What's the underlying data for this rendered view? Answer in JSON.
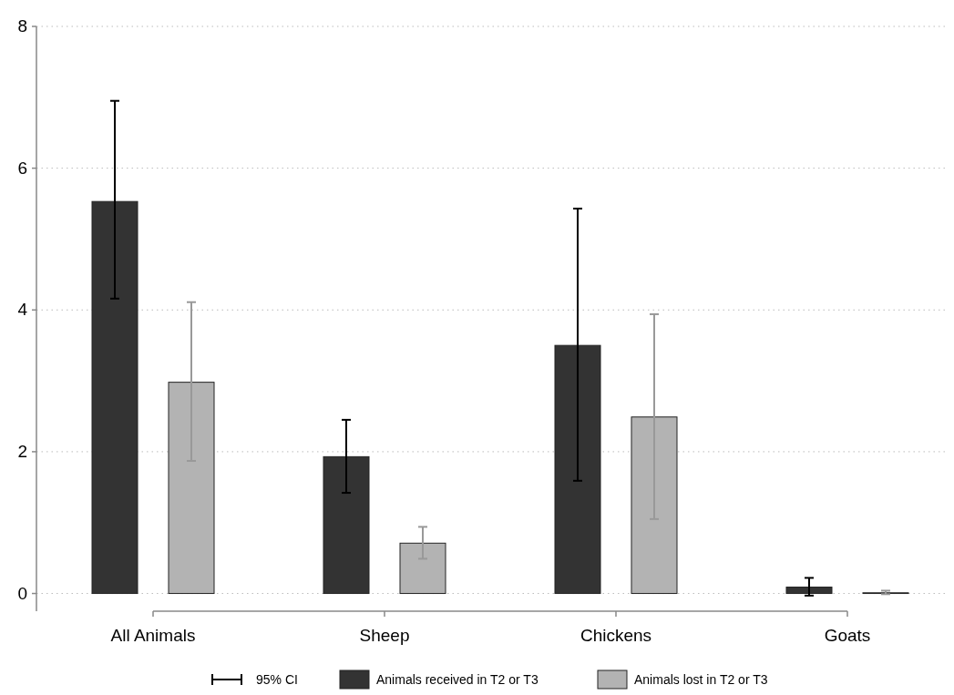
{
  "chart_data": {
    "type": "bar",
    "categories": [
      "All Animals",
      "Sheep",
      "Chickens",
      "Goats"
    ],
    "series": [
      {
        "name": "Animals received in T2 or T3",
        "color": "#333333",
        "values": [
          5.53,
          1.93,
          3.5,
          0.09
        ],
        "errors": [
          [
            4.16,
            6.95
          ],
          [
            1.42,
            2.45
          ],
          [
            1.59,
            5.43
          ],
          [
            -0.03,
            0.22
          ]
        ]
      },
      {
        "name": "Animals lost in T2 or T3",
        "color": "#b3b3b3",
        "values": [
          2.98,
          0.71,
          2.49,
          0.01
        ],
        "errors": [
          [
            1.87,
            4.11
          ],
          [
            0.49,
            0.94
          ],
          [
            1.05,
            3.94
          ],
          [
            -0.01,
            0.04
          ]
        ]
      }
    ],
    "ylim": [
      -0.25,
      8
    ],
    "yticks": [
      0,
      2,
      4,
      6,
      8
    ],
    "grid": "y",
    "legend": "bottom",
    "annotations": [
      "95% CI"
    ]
  }
}
